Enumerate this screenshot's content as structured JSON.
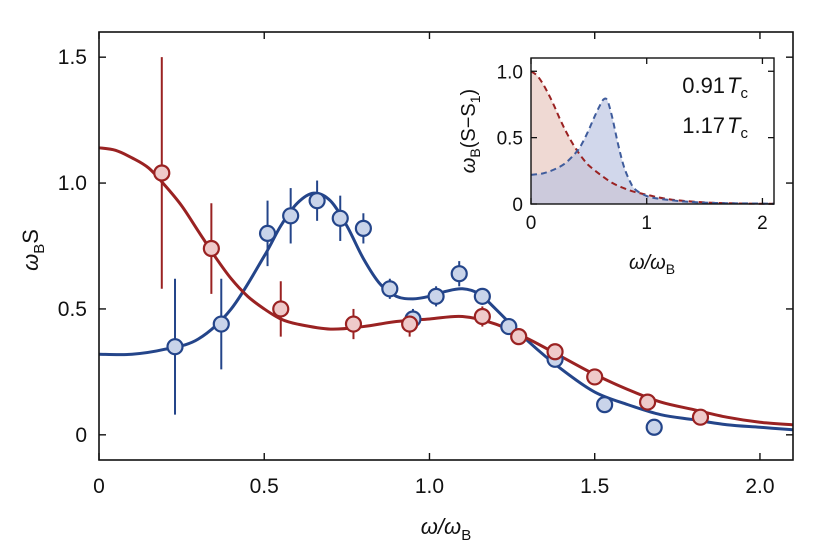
{
  "chart_data": [
    {
      "type": "line",
      "role": "main",
      "title": "",
      "xlabel": "ω/ω_B",
      "ylabel": "ω_B S",
      "xlim": [
        0,
        2.1
      ],
      "ylim": [
        -0.1,
        1.6
      ],
      "xticks": [
        0,
        0.5,
        1.0,
        1.5,
        2.0
      ],
      "xtick_labels": [
        "0",
        "0.5",
        "1.0",
        "1.5",
        "2.0"
      ],
      "yticks": [
        0,
        0.5,
        1.0,
        1.5
      ],
      "ytick_labels": [
        "0",
        "0.5",
        "1.0",
        "1.5"
      ],
      "grid": false,
      "series": [
        {
          "name": "0.91 T_c",
          "color": "#24458a",
          "marker_fill": "#c9d4ea",
          "points": [
            {
              "x": 0.23,
              "y": 0.35,
              "err": 0.27
            },
            {
              "x": 0.37,
              "y": 0.44,
              "err": 0.18
            },
            {
              "x": 0.51,
              "y": 0.8,
              "err": 0.13
            },
            {
              "x": 0.58,
              "y": 0.87,
              "err": 0.11
            },
            {
              "x": 0.66,
              "y": 0.93,
              "err": 0.08
            },
            {
              "x": 0.73,
              "y": 0.86,
              "err": 0.09
            },
            {
              "x": 0.8,
              "y": 0.82,
              "err": 0.06
            },
            {
              "x": 0.88,
              "y": 0.58,
              "err": 0.04
            },
            {
              "x": 0.95,
              "y": 0.46,
              "err": 0.04
            },
            {
              "x": 1.02,
              "y": 0.55,
              "err": 0.04
            },
            {
              "x": 1.09,
              "y": 0.64,
              "err": 0.05
            },
            {
              "x": 1.16,
              "y": 0.55,
              "err": 0.03
            },
            {
              "x": 1.24,
              "y": 0.43,
              "err": 0.03
            },
            {
              "x": 1.38,
              "y": 0.3,
              "err": 0.02
            },
            {
              "x": 1.53,
              "y": 0.12,
              "err": 0.02
            },
            {
              "x": 1.68,
              "y": 0.03,
              "err": 0.02
            }
          ],
          "fit": {
            "x": [
              0,
              0.1,
              0.2,
              0.3,
              0.4,
              0.5,
              0.55,
              0.6,
              0.65,
              0.7,
              0.75,
              0.8,
              0.85,
              0.9,
              0.95,
              1.0,
              1.05,
              1.1,
              1.15,
              1.2,
              1.3,
              1.4,
              1.5,
              1.6,
              1.7,
              1.8,
              1.9,
              2.0,
              2.1
            ],
            "y": [
              0.32,
              0.32,
              0.34,
              0.38,
              0.5,
              0.71,
              0.83,
              0.92,
              0.96,
              0.93,
              0.83,
              0.7,
              0.6,
              0.55,
              0.54,
              0.55,
              0.57,
              0.58,
              0.56,
              0.5,
              0.37,
              0.26,
              0.17,
              0.12,
              0.08,
              0.06,
              0.04,
              0.03,
              0.02
            ]
          }
        },
        {
          "name": "1.17 T_c",
          "color": "#9a2222",
          "marker_fill": "#efcaca",
          "points": [
            {
              "x": 0.19,
              "y": 1.04,
              "err": 0.46
            },
            {
              "x": 0.34,
              "y": 0.74,
              "err": 0.18
            },
            {
              "x": 0.55,
              "y": 0.5,
              "err": 0.11
            },
            {
              "x": 0.77,
              "y": 0.44,
              "err": 0.06
            },
            {
              "x": 0.94,
              "y": 0.44,
              "err": 0.05
            },
            {
              "x": 1.16,
              "y": 0.47,
              "err": 0.04
            },
            {
              "x": 1.27,
              "y": 0.39,
              "err": 0.03
            },
            {
              "x": 1.38,
              "y": 0.33,
              "err": 0.03
            },
            {
              "x": 1.5,
              "y": 0.23,
              "err": 0.02
            },
            {
              "x": 1.66,
              "y": 0.13,
              "err": 0.02
            },
            {
              "x": 1.82,
              "y": 0.07,
              "err": 0.02
            }
          ],
          "fit": {
            "x": [
              0,
              0.05,
              0.1,
              0.15,
              0.2,
              0.25,
              0.3,
              0.35,
              0.4,
              0.45,
              0.5,
              0.55,
              0.6,
              0.7,
              0.8,
              0.9,
              1.0,
              1.1,
              1.2,
              1.3,
              1.4,
              1.5,
              1.6,
              1.7,
              1.8,
              1.9,
              2.0,
              2.1
            ],
            "y": [
              1.14,
              1.13,
              1.1,
              1.06,
              0.99,
              0.91,
              0.81,
              0.71,
              0.62,
              0.55,
              0.5,
              0.46,
              0.44,
              0.42,
              0.43,
              0.45,
              0.46,
              0.47,
              0.44,
              0.38,
              0.31,
              0.24,
              0.18,
              0.13,
              0.1,
              0.07,
              0.05,
              0.04
            ]
          }
        }
      ]
    },
    {
      "type": "area",
      "role": "inset",
      "xlabel": "ω/ω_B",
      "ylabel": "ω_B(S−S_1)",
      "xlim": [
        0,
        2.1
      ],
      "ylim": [
        0,
        1.1
      ],
      "xticks": [
        0,
        1,
        2
      ],
      "xtick_labels": [
        "0",
        "1",
        "2"
      ],
      "yticks": [
        0,
        0.5,
        1.0
      ],
      "ytick_labels": [
        "0",
        "0.5",
        "1.0"
      ],
      "line_style": "dashed",
      "series": [
        {
          "name": "1.17 T_c",
          "color": "#9a2222",
          "fill": "#e7c4bc",
          "x": [
            0,
            0.05,
            0.1,
            0.15,
            0.2,
            0.25,
            0.3,
            0.35,
            0.4,
            0.45,
            0.5,
            0.6,
            0.7,
            0.8,
            0.9,
            1.0,
            1.1,
            1.2,
            1.3,
            1.4,
            1.5,
            1.6,
            1.7,
            1.8,
            1.9,
            2.0,
            2.1
          ],
          "y": [
            1.0,
            0.97,
            0.91,
            0.83,
            0.74,
            0.64,
            0.55,
            0.47,
            0.4,
            0.34,
            0.29,
            0.22,
            0.16,
            0.12,
            0.09,
            0.07,
            0.05,
            0.035,
            0.025,
            0.018,
            0.012,
            0.008,
            0.006,
            0.004,
            0.003,
            0.002,
            0.002
          ]
        },
        {
          "name": "0.91 T_c",
          "color": "#3f5c9c",
          "fill": "#b8c2e0",
          "x": [
            0,
            0.1,
            0.2,
            0.3,
            0.4,
            0.45,
            0.5,
            0.55,
            0.6,
            0.63,
            0.66,
            0.7,
            0.75,
            0.8,
            0.85,
            0.9,
            1.0,
            1.1,
            1.2,
            1.3,
            1.4,
            1.5,
            1.6,
            1.7,
            1.8,
            1.9,
            2.0,
            2.1
          ],
          "y": [
            0.22,
            0.23,
            0.26,
            0.31,
            0.4,
            0.47,
            0.56,
            0.66,
            0.75,
            0.79,
            0.78,
            0.66,
            0.46,
            0.29,
            0.18,
            0.11,
            0.06,
            0.04,
            0.03,
            0.02,
            0.015,
            0.01,
            0.008,
            0.006,
            0.005,
            0.004,
            0.003,
            0.002
          ]
        }
      ]
    }
  ],
  "axis_text": {
    "main_x_var": "ω/ω",
    "main_x_sub": "B",
    "main_y_var": "ω",
    "main_y_sub": "B",
    "main_y_tail": "S",
    "inset_x_var": "ω/ω",
    "inset_x_sub": "B",
    "inset_y_var": "ω",
    "inset_y_sub": "B",
    "inset_y_mid": "(S−S",
    "inset_y_sub2": "1",
    "inset_y_tail": ")"
  },
  "legend": [
    {
      "value": "0.91",
      "symbol": "T",
      "sub": "c",
      "color": "#24458a"
    },
    {
      "value": "1.17",
      "symbol": "T",
      "sub": "c",
      "color": "#9a2222"
    }
  ]
}
